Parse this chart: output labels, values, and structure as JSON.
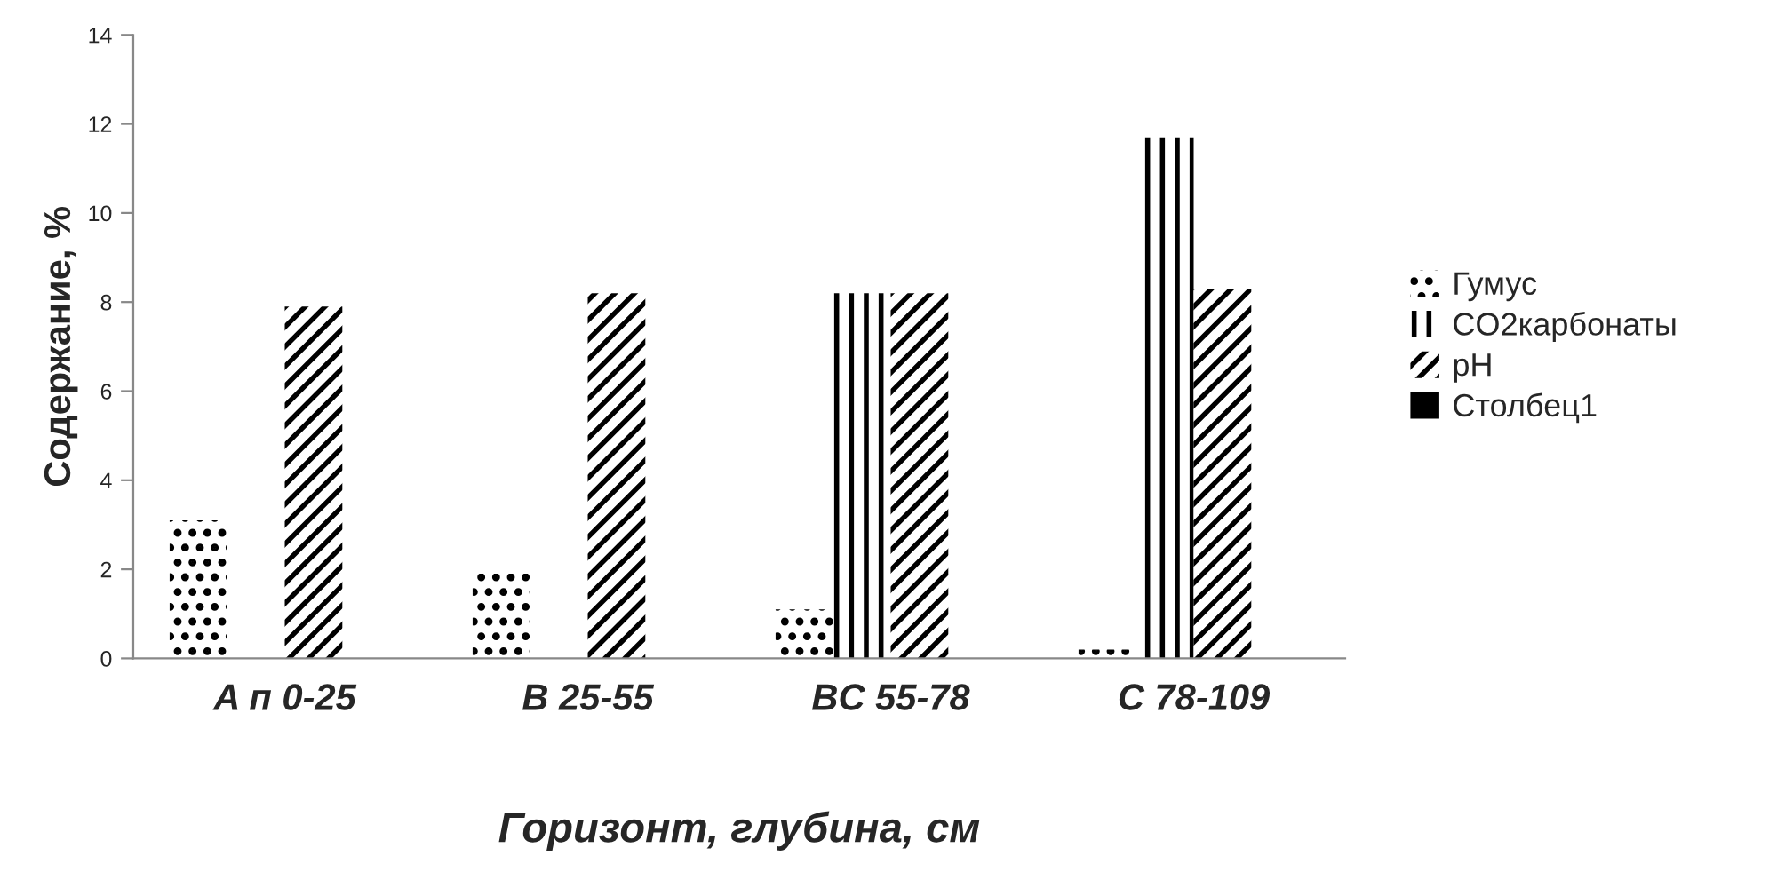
{
  "chart_data": {
    "type": "bar",
    "categories": [
      "A п 0-25",
      "B 25-55",
      "BC 55-78",
      "C 78-109"
    ],
    "series": [
      {
        "name": "Гумус",
        "color": "#000000",
        "values": [
          3.1,
          1.9,
          1.1,
          0.2
        ]
      },
      {
        "name": "CO2карбонаты",
        "color": "#000000",
        "values": [
          null,
          null,
          8.2,
          11.7
        ]
      },
      {
        "name": "pH",
        "color": "#000000",
        "values": [
          7.9,
          8.2,
          8.2,
          8.3
        ]
      },
      {
        "name": "Столбец1",
        "color": "#000000",
        "values": [
          null,
          null,
          null,
          null
        ]
      }
    ],
    "xlabel": "Горизонт, глубина, см",
    "ylabel": "Содержание, %",
    "ylim": [
      0,
      14
    ],
    "yticks": [
      0,
      2,
      4,
      6,
      8,
      10,
      12,
      14
    ],
    "grid": false,
    "legend": "right"
  }
}
